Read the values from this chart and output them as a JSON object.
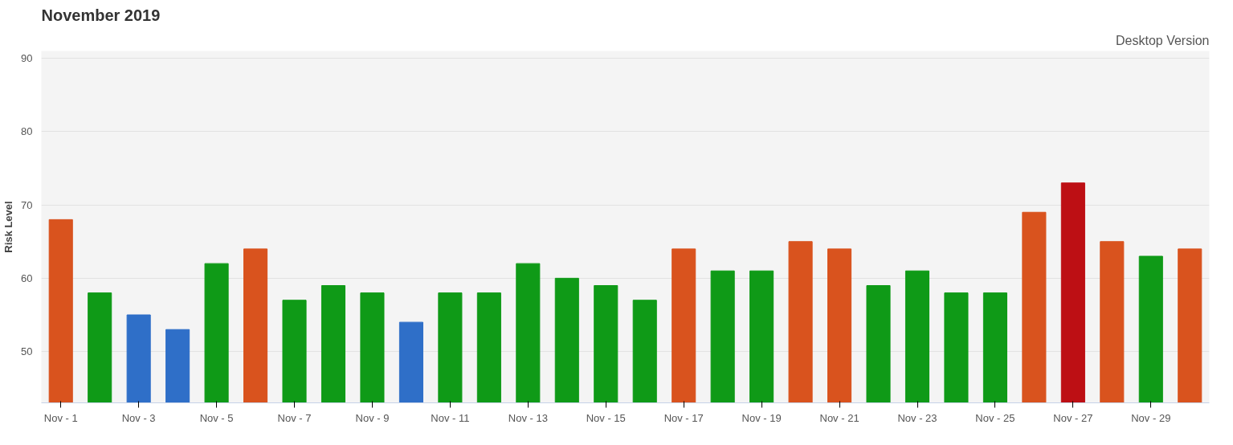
{
  "chart_data": {
    "type": "bar",
    "title": "November 2019",
    "annotations": [
      "Desktop Version"
    ],
    "ylabel": "Risk Level",
    "categories": [
      "Nov - 1",
      null,
      "Nov - 3",
      null,
      "Nov - 5",
      null,
      "Nov - 7",
      null,
      "Nov - 9",
      null,
      "Nov - 11",
      null,
      "Nov - 13",
      null,
      "Nov - 15",
      null,
      "Nov - 17",
      null,
      "Nov - 19",
      null,
      "Nov - 21",
      null,
      "Nov - 23",
      null,
      "Nov - 25",
      null,
      "Nov - 27",
      null,
      "Nov - 29",
      null
    ],
    "values": [
      68,
      58,
      55,
      53,
      62,
      64,
      57,
      59,
      58,
      54,
      58,
      58,
      62,
      60,
      59,
      57,
      64,
      61,
      61,
      65,
      64,
      59,
      61,
      58,
      58,
      69,
      73,
      65,
      63,
      64
    ],
    "colors": [
      "#d9531e",
      "#0f9a17",
      "#2f6fc8",
      "#2f6fc8",
      "#0f9a17",
      "#d9531e",
      "#0f9a17",
      "#0f9a17",
      "#0f9a17",
      "#2f6fc8",
      "#0f9a17",
      "#0f9a17",
      "#0f9a17",
      "#0f9a17",
      "#0f9a17",
      "#0f9a17",
      "#d9531e",
      "#0f9a17",
      "#0f9a17",
      "#d9531e",
      "#d9531e",
      "#0f9a17",
      "#0f9a17",
      "#0f9a17",
      "#0f9a17",
      "#d9531e",
      "#bd0f14",
      "#d9531e",
      "#0f9a17",
      "#d9531e"
    ],
    "ylim": [
      43,
      91
    ],
    "yticks": [
      50,
      60,
      70,
      80,
      90
    ],
    "grid": "y"
  }
}
